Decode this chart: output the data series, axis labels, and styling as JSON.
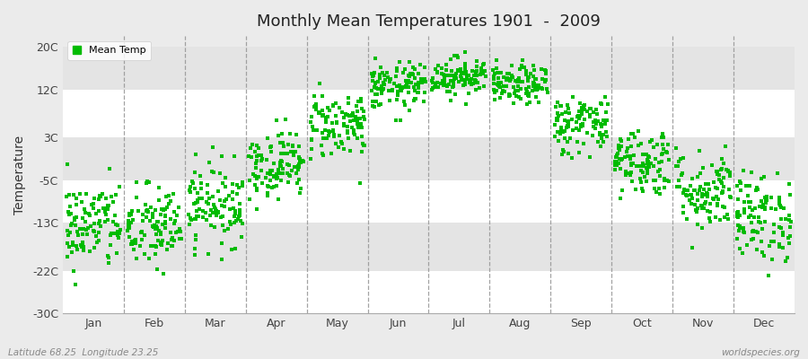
{
  "title": "Monthly Mean Temperatures 1901  -  2009",
  "ylabel": "Temperature",
  "footer_left": "Latitude 68.25  Longitude 23.25",
  "footer_right": "worldspecies.org",
  "legend_label": "Mean Temp",
  "yticks": [
    -30,
    -22,
    -13,
    -5,
    3,
    12,
    20
  ],
  "yticklabels": [
    "-30C",
    "-22C",
    "-13C",
    "-5C",
    "3C",
    "12C",
    "20C"
  ],
  "ylim": [
    -30,
    22
  ],
  "months": [
    "Jan",
    "Feb",
    "Mar",
    "Apr",
    "May",
    "Jun",
    "Jul",
    "Aug",
    "Sep",
    "Oct",
    "Nov",
    "Dec"
  ],
  "dot_color": "#00BB00",
  "background_color": "#EBEBEB",
  "band_white": "#FFFFFF",
  "band_gray": "#E4E4E4",
  "monthly_means": [
    -13.5,
    -14.0,
    -9.5,
    -2.0,
    5.5,
    12.5,
    14.5,
    12.8,
    5.5,
    -1.5,
    -7.0,
    -12.0
  ],
  "monthly_stds": [
    4.2,
    4.0,
    3.8,
    3.2,
    3.2,
    2.2,
    1.8,
    1.8,
    2.8,
    3.2,
    3.8,
    4.2
  ],
  "n_points": 109,
  "seed": 42,
  "figsize": [
    9.0,
    4.0
  ],
  "dpi": 100
}
